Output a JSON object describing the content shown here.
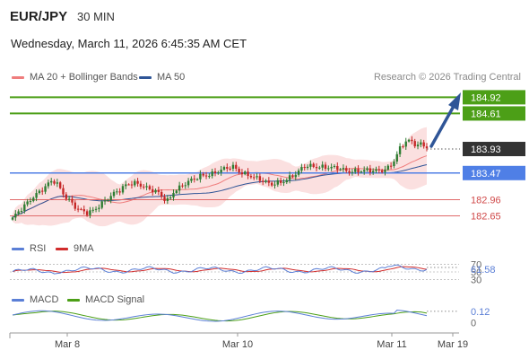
{
  "header": {
    "pair": "EUR/JPY",
    "timeframe": "30 MIN",
    "timestamp": "Wednesday, March 11, 2026 6:45:35 AM CET",
    "copyright": "Research © 2026 Trading Central"
  },
  "legend": {
    "ma20_bb": "MA 20 + Bollinger Bands",
    "ma50": "MA 50",
    "rsi": "RSI",
    "rsi_ma": "9MA",
    "macd": "MACD",
    "macd_signal": "MACD Signal"
  },
  "colors": {
    "bull": "#2e7d32",
    "bear": "#c62828",
    "ma20": "#ef7d7d",
    "bands_fill": "#fbe0e0",
    "ma50": "#2f5597",
    "target": "#4c9f17",
    "pivot": "#4f7fe6",
    "support": "#e06a6a",
    "current": "#333333",
    "arrow": "#2f5597",
    "rsi": "#5b7fd6",
    "rsi_ma": "#d12c2c",
    "macd": "#5b7fd6",
    "macd_signal": "#4c9f17"
  },
  "chart_data": {
    "type": "candlestick",
    "y_range": [
      182.35,
      185.15
    ],
    "levels": [
      {
        "role": "target",
        "value": 184.92,
        "label": "184.92"
      },
      {
        "role": "target",
        "value": 184.61,
        "label": "184.61"
      },
      {
        "role": "current",
        "value": 183.93,
        "label": "183.93"
      },
      {
        "role": "pivot",
        "value": 183.47,
        "label": "183.47"
      },
      {
        "role": "support",
        "value": 182.96,
        "label": "182.96"
      },
      {
        "role": "support",
        "value": 182.65,
        "label": "182.65"
      }
    ],
    "x_ticks": [
      "Mar 8",
      "Mar 10",
      "Mar 11",
      "Mar 19"
    ],
    "price_path": [
      182.58,
      182.7,
      182.82,
      182.95,
      183.05,
      183.12,
      183.18,
      183.28,
      183.3,
      183.15,
      183.02,
      182.92,
      182.78,
      182.72,
      182.68,
      182.75,
      182.85,
      182.95,
      183.02,
      183.08,
      183.12,
      183.22,
      183.28,
      183.3,
      183.25,
      183.18,
      183.12,
      183.08,
      182.98,
      182.95,
      183.15,
      183.2,
      183.25,
      183.3,
      183.35,
      183.42,
      183.45,
      183.47,
      183.5,
      183.52,
      183.55,
      183.58,
      183.52,
      183.48,
      183.44,
      183.38,
      183.32,
      183.28,
      183.25,
      183.3,
      183.32,
      183.35,
      183.4,
      183.45,
      183.58,
      183.62,
      183.62,
      183.6,
      183.58,
      183.55,
      183.55,
      183.55,
      183.53,
      183.52,
      183.52,
      183.5,
      183.5,
      183.5,
      183.52,
      183.55,
      183.6,
      183.72,
      183.92,
      184.05,
      184.08,
      184.02,
      184.05,
      183.98
    ],
    "indicators": {
      "rsi": {
        "value": 61.58,
        "levels": [
          70,
          50,
          30
        ]
      },
      "macd": {
        "value": 0.12,
        "levels": [
          0
        ]
      }
    }
  }
}
